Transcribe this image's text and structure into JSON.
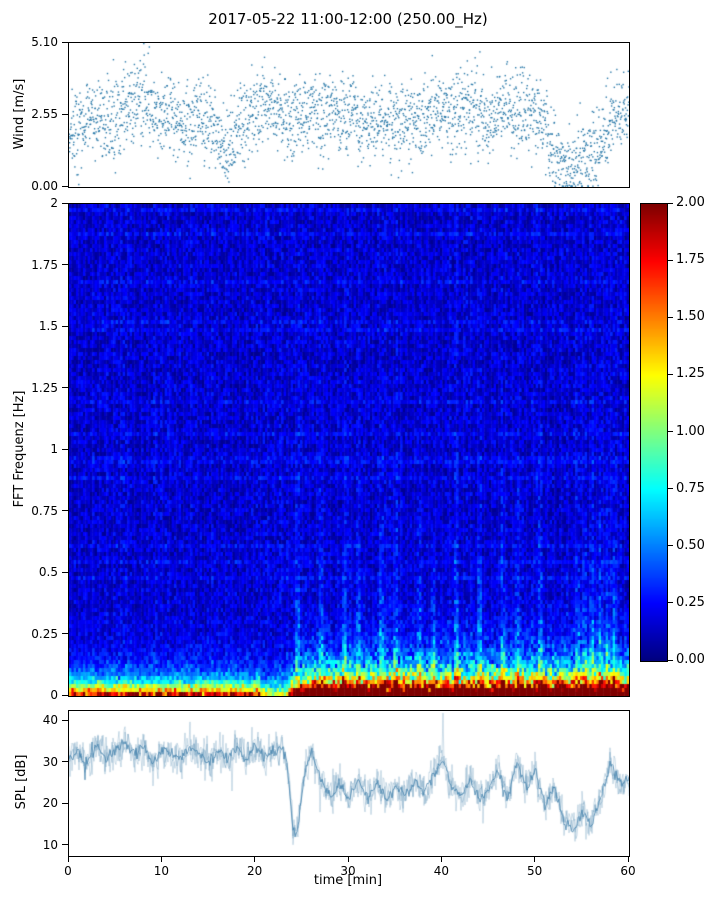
{
  "title": "2017-05-22 11:00-12:00 (250.00_Hz)",
  "xlabel": "time [min]",
  "x_axis": {
    "lim": [
      0,
      60
    ],
    "tick_values": [
      0,
      10,
      20,
      30,
      40,
      50,
      60
    ],
    "tick_labels": [
      "0",
      "10",
      "20",
      "30",
      "40",
      "50",
      "60"
    ]
  },
  "chart_data": [
    {
      "type": "scatter",
      "name": "wind-speed",
      "ylabel": "Wind [m/s]",
      "ylim": [
        0,
        5.1
      ],
      "ytick_values": [
        5.1,
        2.55,
        0.0
      ],
      "ytick_labels": [
        "5.10",
        "2.55",
        "0.00"
      ],
      "point_color": "#2878a8",
      "n_points": 2600,
      "minute_grid": "0..60 step 1",
      "mean_curve": [
        1.6,
        2.0,
        2.3,
        2.6,
        2.2,
        2.5,
        2.8,
        3.1,
        3.3,
        2.7,
        2.4,
        2.6,
        2.3,
        2.1,
        2.6,
        2.2,
        1.7,
        1.0,
        1.9,
        2.3,
        2.6,
        3.0,
        2.8,
        2.5,
        2.2,
        2.6,
        2.9,
        2.3,
        2.9,
        2.4,
        2.6,
        2.4,
        2.2,
        2.5,
        2.3,
        2.1,
        2.4,
        2.6,
        2.3,
        2.5,
        2.8,
        2.4,
        2.6,
        2.8,
        2.5,
        2.3,
        2.7,
        3.0,
        2.5,
        2.3,
        2.6,
        2.1,
        1.3,
        0.8,
        0.7,
        0.8,
        1.0,
        1.6,
        2.4,
        2.7,
        2.5
      ],
      "noise_sd": 0.7,
      "seed": 42
    },
    {
      "type": "heatmap",
      "name": "fft-spectrogram",
      "ylabel": "FFT Frequenz [Hz]",
      "ylim": [
        0,
        2
      ],
      "ytick_values": [
        2,
        1.75,
        1.5,
        1.25,
        1,
        0.75,
        0.5,
        0.25,
        0
      ],
      "ytick_labels": [
        "2",
        "1.75",
        "1.5",
        "1.25",
        "1",
        "0.75",
        "0.5",
        "0.25",
        "0"
      ],
      "colormap": "jet",
      "value_range": [
        0,
        2
      ],
      "colorbar_tick_values": [
        2,
        1.75,
        1.5,
        1.25,
        1,
        0.75,
        0.5,
        0.25,
        0
      ],
      "colorbar_tick_labels": [
        "2.00",
        "1.75",
        "1.50",
        "1.25",
        "1.00",
        "0.75",
        "0.50",
        "0.25",
        "0.00"
      ],
      "time_bins": 240,
      "freq_bins": 123,
      "base_level": 0.16,
      "base_noise": 0.13,
      "column_variation": 0.16,
      "row_streak_count": 14,
      "row_streak_boost": 0.07,
      "bottom_band": {
        "freq_scale": 0.045,
        "amp_early": 1.7,
        "amp_late": 2.4,
        "ramp_start": 23,
        "ramp_end": 26,
        "gap_start": 20.5,
        "gap_end": 23.5,
        "gap_factor": 0.55
      },
      "mid_band": {
        "freq_scale": 0.11,
        "amp_early": 0.35,
        "amp_late": 1.5
      },
      "burst_amp": 0.55,
      "burst_freq_scale": 0.45,
      "burst_times": [
        24.5,
        27,
        29.5,
        31,
        33.5,
        35,
        37.5,
        39,
        41.5,
        44,
        46.5,
        48,
        50.5,
        54.5,
        55.3,
        56.1,
        56.9,
        57.7,
        58.4
      ],
      "seed": 7
    },
    {
      "type": "line",
      "name": "spl",
      "ylabel": "SPL [dB]",
      "ylim": [
        7.5,
        42.5
      ],
      "ytick_values": [
        40,
        30,
        20,
        10
      ],
      "ytick_labels": [
        "40",
        "30",
        "20",
        "10"
      ],
      "line_color": "#3a7ca8",
      "keyframes_x": [
        0,
        1,
        2,
        3,
        4,
        5,
        6,
        7,
        8,
        9,
        10,
        11,
        12,
        13,
        14,
        15,
        16,
        17,
        18,
        19,
        20,
        21,
        22,
        23,
        23.5,
        24,
        24.4,
        24.8,
        25.3,
        26,
        27,
        28,
        29,
        30,
        31,
        32,
        33,
        34,
        35,
        36,
        37,
        38,
        39,
        40,
        41,
        42,
        43,
        44,
        45,
        46,
        47,
        48,
        49,
        50,
        51,
        52,
        53,
        54,
        55,
        56,
        57,
        58,
        59,
        60
      ],
      "keyframes_y": [
        31,
        33,
        30,
        34,
        31,
        33,
        35,
        32,
        34,
        30,
        33,
        32,
        31,
        34,
        32,
        30,
        33,
        31,
        34,
        30,
        34,
        31,
        33,
        34,
        27,
        14,
        12,
        20,
        28,
        33,
        26,
        22,
        25,
        21,
        26,
        22,
        25,
        21,
        24,
        22,
        26,
        23,
        27,
        31,
        24,
        22,
        26,
        21,
        24,
        28,
        22,
        30,
        24,
        28,
        20,
        24,
        16,
        14,
        18,
        15,
        22,
        30,
        25,
        26
      ],
      "noise_sd": 1.3,
      "seed": 11
    }
  ]
}
